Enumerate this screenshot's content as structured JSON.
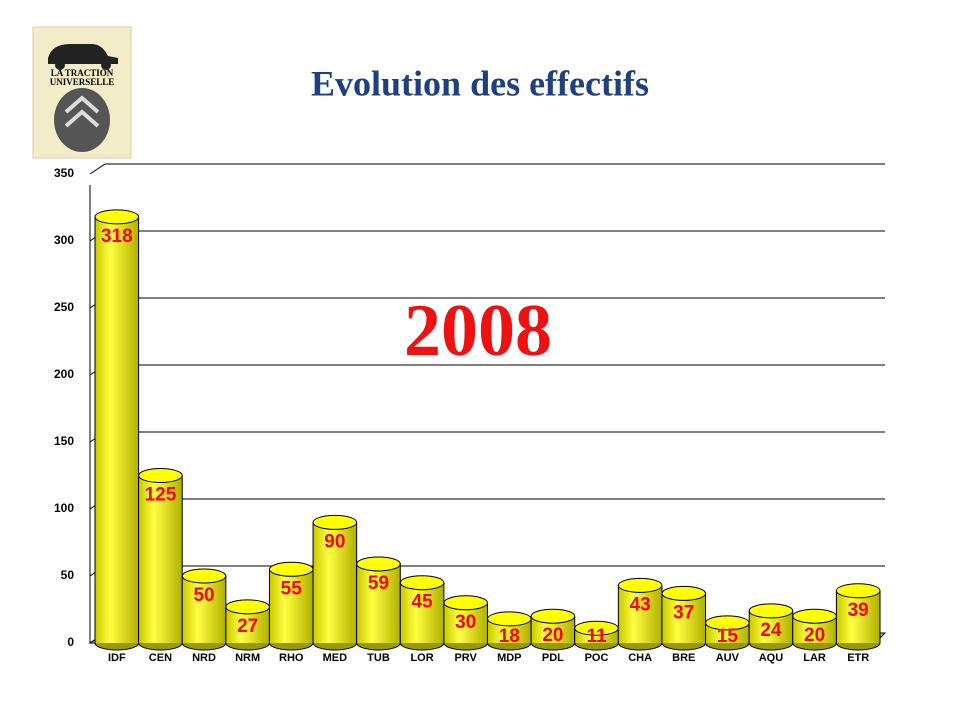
{
  "logo": {
    "line1": "LA TRACTION",
    "line2": "UNIVERSELLE"
  },
  "chart_data": {
    "type": "bar",
    "title": "Evolution des effectifs",
    "annotation": "2008",
    "categories": [
      "IDF",
      "CEN",
      "NRD",
      "NRM",
      "RHO",
      "MED",
      "TUB",
      "LOR",
      "PRV",
      "MDP",
      "PDL",
      "POC",
      "CHA",
      "BRE",
      "AUV",
      "AQU",
      "LAR",
      "ETR"
    ],
    "values": [
      318,
      125,
      50,
      27,
      55,
      90,
      59,
      45,
      30,
      18,
      20,
      11,
      43,
      37,
      15,
      24,
      20,
      39
    ],
    "color": "#ffff00",
    "label_color": "#ff0000",
    "ylim": [
      0,
      350
    ],
    "yticks": [
      0,
      50,
      100,
      150,
      200,
      250,
      300,
      350
    ],
    "grid": true
  }
}
